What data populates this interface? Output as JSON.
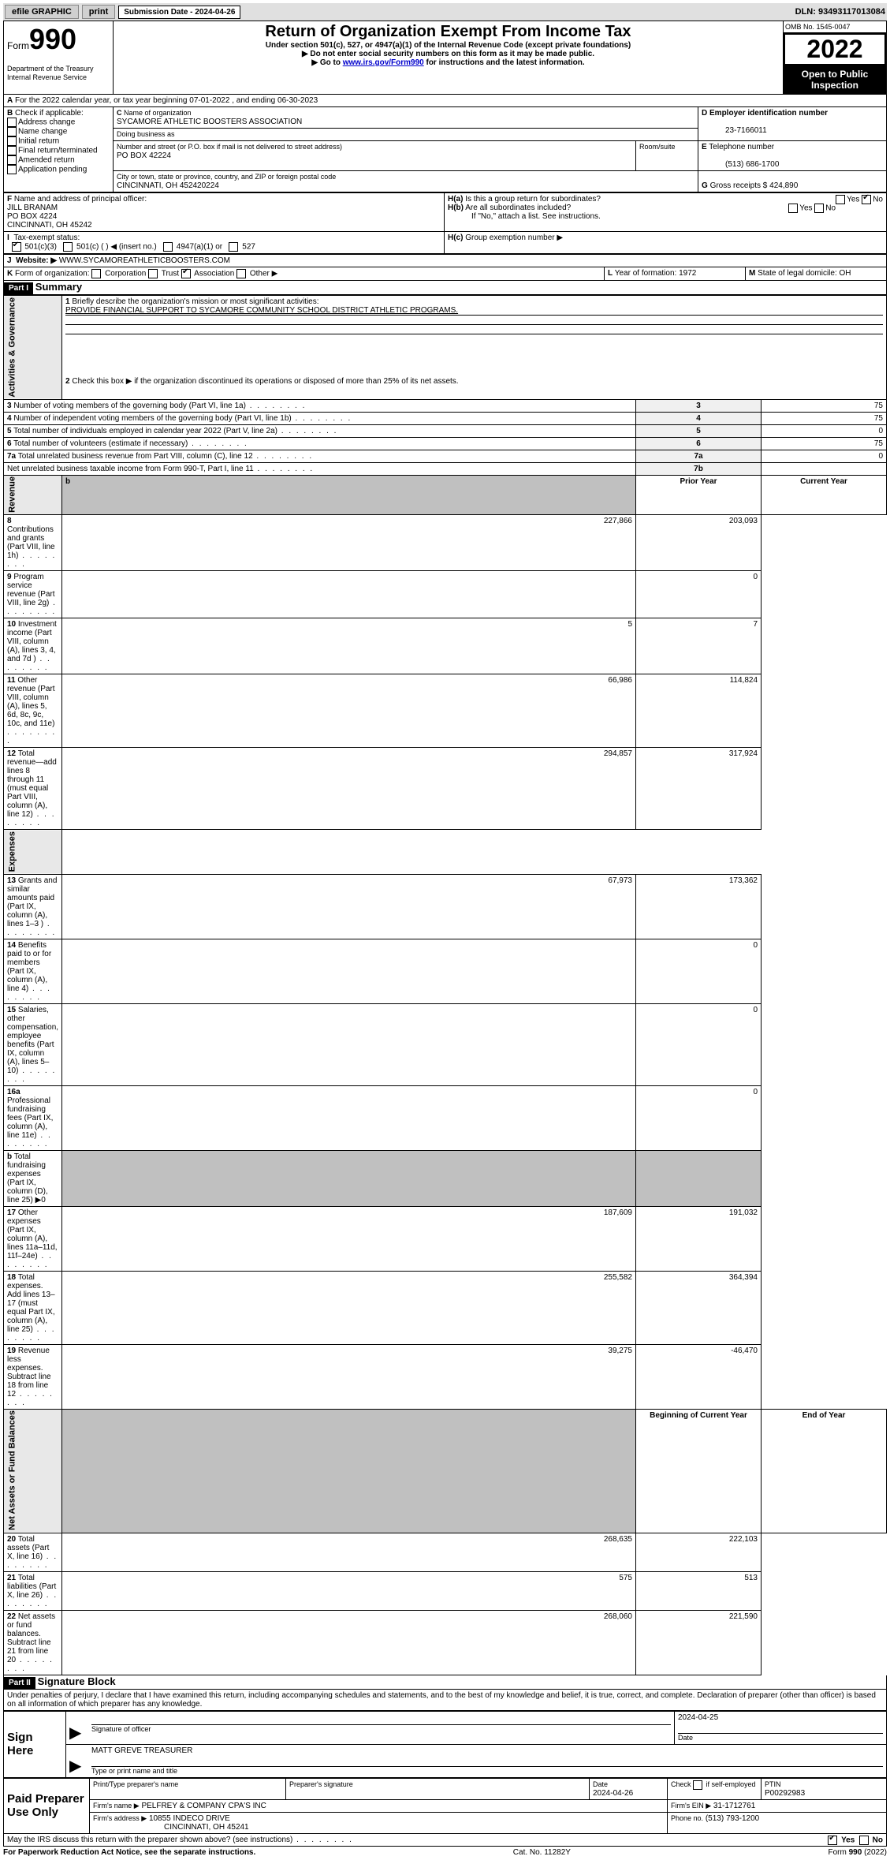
{
  "topbar": {
    "efile": "efile GRAPHIC",
    "print": "print",
    "subdate_label": "Submission Date - 2024-04-26",
    "dln": "DLN: 93493117013084"
  },
  "header": {
    "form_word": "Form",
    "form_num": "990",
    "dept": "Department of the Treasury",
    "irs": "Internal Revenue Service",
    "title": "Return of Organization Exempt From Income Tax",
    "sub1": "Under section 501(c), 527, or 4947(a)(1) of the Internal Revenue Code (except private foundations)",
    "sub2": "Do not enter social security numbers on this form as it may be made public.",
    "sub3": "Go to www.irs.gov/Form990 for instructions and the latest information.",
    "omb": "OMB No. 1545-0047",
    "year": "2022",
    "open": "Open to Public Inspection"
  },
  "A": {
    "text": "For the 2022 calendar year, or tax year beginning 07-01-2022    , and ending 06-30-2023"
  },
  "B": {
    "label": "Check if applicable:",
    "opts": [
      "Address change",
      "Name change",
      "Initial return",
      "Final return/terminated",
      "Amended return",
      "Application pending"
    ]
  },
  "C": {
    "name_label": "Name of organization",
    "name": "SYCAMORE ATHLETIC BOOSTERS ASSOCIATION",
    "dba_label": "Doing business as",
    "addr_label": "Number and street (or P.O. box if mail is not delivered to street address)",
    "room_label": "Room/suite",
    "addr": "PO BOX 42224",
    "city_label": "City or town, state or province, country, and ZIP or foreign postal code",
    "city": "CINCINNATI, OH  452420224"
  },
  "D": {
    "label": "Employer identification number",
    "val": "23-7166011"
  },
  "E": {
    "label": "Telephone number",
    "val": "(513) 686-1700"
  },
  "G": {
    "label": "Gross receipts $",
    "val": "424,890"
  },
  "F": {
    "label": "Name and address of principal officer:",
    "name": "JILL BRANAM",
    "addr": "PO BOX 4224",
    "city": "CINCINNATI, OH  45242"
  },
  "H": {
    "a": "Is this a group return for subordinates?",
    "b": "Are all subordinates included?",
    "note": "If \"No,\" attach a list. See instructions.",
    "c": "Group exemption number ▶",
    "yes": "Yes",
    "no": "No"
  },
  "I": {
    "label": "Tax-exempt status:",
    "opts": [
      "501(c)(3)",
      "501(c) (  ) ◀ (insert no.)",
      "4947(a)(1) or",
      "527"
    ]
  },
  "J": {
    "label": "Website: ▶",
    "val": "WWW.SYCAMOREATHLETICBOOSTERS.COM"
  },
  "K": {
    "label": "Form of organization:",
    "opts": [
      "Corporation",
      "Trust",
      "Association",
      "Other ▶"
    ]
  },
  "L": {
    "label": "Year of formation:",
    "val": "1972"
  },
  "M": {
    "label": "State of legal domicile:",
    "val": "OH"
  },
  "part1": {
    "hdr": "Part I",
    "title": "Summary",
    "l1": "Briefly describe the organization's mission or most significant activities:",
    "l1v": "PROVIDE FINANCIAL SUPPORT TO SYCAMORE COMMUNITY SCHOOL DISTRICT ATHLETIC PROGRAMS.",
    "l2": "Check this box ▶       if the organization discontinued its operations or disposed of more than 25% of its net assets.",
    "gov": [
      {
        "n": "3",
        "t": "Number of voting members of the governing body (Part VI, line 1a)",
        "b": "3",
        "v": "75"
      },
      {
        "n": "4",
        "t": "Number of independent voting members of the governing body (Part VI, line 1b)",
        "b": "4",
        "v": "75"
      },
      {
        "n": "5",
        "t": "Total number of individuals employed in calendar year 2022 (Part V, line 2a)",
        "b": "5",
        "v": "0"
      },
      {
        "n": "6",
        "t": "Total number of volunteers (estimate if necessary)",
        "b": "6",
        "v": "75"
      },
      {
        "n": "7a",
        "t": "Total unrelated business revenue from Part VIII, column (C), line 12",
        "b": "7a",
        "v": "0"
      },
      {
        "n": "",
        "t": "Net unrelated business taxable income from Form 990-T, Part I, line 11",
        "b": "7b",
        "v": ""
      }
    ],
    "py": "Prior Year",
    "cy": "Current Year",
    "rev": [
      {
        "n": "8",
        "t": "Contributions and grants (Part VIII, line 1h)",
        "p": "227,866",
        "c": "203,093"
      },
      {
        "n": "9",
        "t": "Program service revenue (Part VIII, line 2g)",
        "p": "",
        "c": "0"
      },
      {
        "n": "10",
        "t": "Investment income (Part VIII, column (A), lines 3, 4, and 7d )",
        "p": "5",
        "c": "7"
      },
      {
        "n": "11",
        "t": "Other revenue (Part VIII, column (A), lines 5, 6d, 8c, 9c, 10c, and 11e)",
        "p": "66,986",
        "c": "114,824"
      },
      {
        "n": "12",
        "t": "Total revenue—add lines 8 through 11 (must equal Part VIII, column (A), line 12)",
        "p": "294,857",
        "c": "317,924"
      }
    ],
    "exp": [
      {
        "n": "13",
        "t": "Grants and similar amounts paid (Part IX, column (A), lines 1–3 )",
        "p": "67,973",
        "c": "173,362"
      },
      {
        "n": "14",
        "t": "Benefits paid to or for members (Part IX, column (A), line 4)",
        "p": "",
        "c": "0"
      },
      {
        "n": "15",
        "t": "Salaries, other compensation, employee benefits (Part IX, column (A), lines 5–10)",
        "p": "",
        "c": "0"
      },
      {
        "n": "16a",
        "t": "Professional fundraising fees (Part IX, column (A), line 11e)",
        "p": "",
        "c": "0"
      },
      {
        "n": "b",
        "t": "Total fundraising expenses (Part IX, column (D), line 25) ▶0",
        "p": "GRAY",
        "c": "GRAY"
      },
      {
        "n": "17",
        "t": "Other expenses (Part IX, column (A), lines 11a–11d, 11f–24e)",
        "p": "187,609",
        "c": "191,032"
      },
      {
        "n": "18",
        "t": "Total expenses. Add lines 13–17 (must equal Part IX, column (A), line 25)",
        "p": "255,582",
        "c": "364,394"
      },
      {
        "n": "19",
        "t": "Revenue less expenses. Subtract line 18 from line 12",
        "p": "39,275",
        "c": "-46,470"
      }
    ],
    "bcy": "Beginning of Current Year",
    "eoy": "End of Year",
    "net": [
      {
        "n": "20",
        "t": "Total assets (Part X, line 16)",
        "p": "268,635",
        "c": "222,103"
      },
      {
        "n": "21",
        "t": "Total liabilities (Part X, line 26)",
        "p": "575",
        "c": "513"
      },
      {
        "n": "22",
        "t": "Net assets or fund balances. Subtract line 21 from line 20",
        "p": "268,060",
        "c": "221,590"
      }
    ],
    "vlab_gov": "Activities & Governance",
    "vlab_rev": "Revenue",
    "vlab_exp": "Expenses",
    "vlab_net": "Net Assets or Fund Balances"
  },
  "part2": {
    "hdr": "Part II",
    "title": "Signature Block",
    "decl": "Under penalties of perjury, I declare that I have examined this return, including accompanying schedules and statements, and to the best of my knowledge and belief, it is true, correct, and complete. Declaration of preparer (other than officer) is based on all information of which preparer has any knowledge.",
    "sign": "Sign Here",
    "sig_off": "Signature of officer",
    "date": "Date",
    "sig_date": "2024-04-25",
    "name_title": "MATT GREVE  TREASURER",
    "type_name": "Type or print name and title",
    "paid": "Paid Preparer Use Only",
    "pp_name": "Print/Type preparer's name",
    "pp_sig": "Preparer's signature",
    "pp_date_l": "Date",
    "pp_date": "2024-04-26",
    "pp_check": "Check        if self-employed",
    "ptin_l": "PTIN",
    "ptin": "P00292983",
    "firm_name_l": "Firm's name    ▶",
    "firm_name": "PELFREY & COMPANY CPA'S INC",
    "firm_ein_l": "Firm's EIN ▶",
    "firm_ein": "31-1712761",
    "firm_addr_l": "Firm's address ▶",
    "firm_addr": "10855 INDECO DRIVE",
    "firm_city": "CINCINNATI, OH  45241",
    "phone_l": "Phone no.",
    "phone": "(513) 793-1200",
    "may": "May the IRS discuss this return with the preparer shown above? (see instructions)",
    "yes": "Yes",
    "no": "No"
  },
  "footer": {
    "pra": "For Paperwork Reduction Act Notice, see the separate instructions.",
    "cat": "Cat. No. 11282Y",
    "form": "Form 990 (2022)"
  }
}
